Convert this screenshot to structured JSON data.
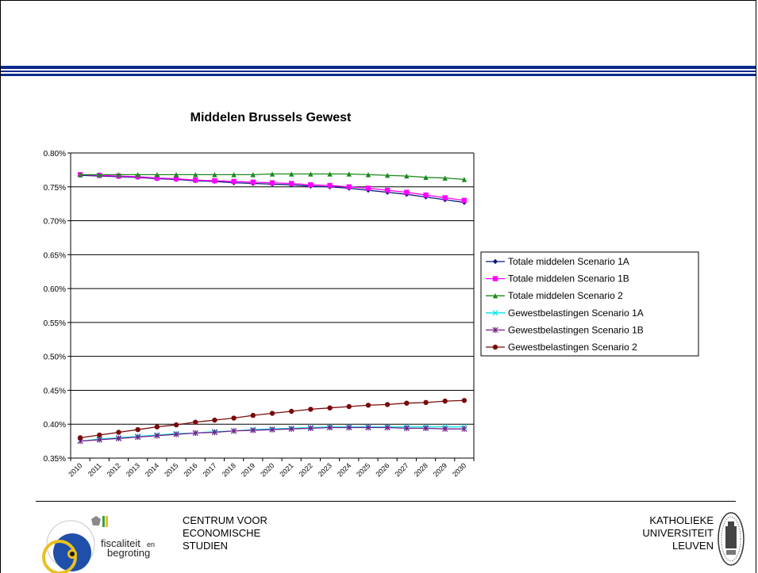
{
  "colors": {
    "band": "#0a2a8c",
    "series": [
      "#0a1a7a",
      "#ff00ff",
      "#1a8a1a",
      "#00e5e5",
      "#7a1f8a",
      "#7a0a0a"
    ]
  },
  "chart_data": {
    "type": "line",
    "title": "Middelen Brussels Gewest",
    "xlabel": "",
    "ylabel": "",
    "ylim": [
      0.35,
      0.8
    ],
    "y_ticks": [
      "0.35%",
      "0.40%",
      "0.45%",
      "0.50%",
      "0.55%",
      "0.60%",
      "0.65%",
      "0.70%",
      "0.75%",
      "0.80%"
    ],
    "grid": "horizontal",
    "legend_position": "right",
    "x": [
      "2010",
      "2011",
      "2012",
      "2013",
      "2014",
      "2015",
      "2016",
      "2017",
      "2018",
      "2019",
      "2020",
      "2021",
      "2022",
      "2023",
      "2024",
      "2025",
      "2026",
      "2027",
      "2028",
      "2029",
      "2030"
    ],
    "series": [
      {
        "name": "Totale middelen Scenario 1A",
        "marker": "diamond",
        "values": [
          0.767,
          0.766,
          0.765,
          0.764,
          0.762,
          0.761,
          0.759,
          0.758,
          0.756,
          0.755,
          0.754,
          0.753,
          0.751,
          0.75,
          0.748,
          0.745,
          0.742,
          0.739,
          0.735,
          0.731,
          0.727
        ]
      },
      {
        "name": "Totale middelen Scenario 1B",
        "marker": "square",
        "values": [
          0.768,
          0.767,
          0.766,
          0.765,
          0.763,
          0.762,
          0.76,
          0.759,
          0.758,
          0.757,
          0.756,
          0.755,
          0.753,
          0.752,
          0.75,
          0.748,
          0.745,
          0.742,
          0.738,
          0.734,
          0.73
        ]
      },
      {
        "name": "Totale middelen Scenario 2",
        "marker": "triangle",
        "values": [
          0.768,
          0.768,
          0.768,
          0.768,
          0.768,
          0.768,
          0.768,
          0.768,
          0.768,
          0.768,
          0.769,
          0.769,
          0.769,
          0.769,
          0.769,
          0.768,
          0.767,
          0.766,
          0.764,
          0.763,
          0.761
        ]
      },
      {
        "name": "Gewestbelastingen Scenario 1A",
        "marker": "x",
        "values": [
          0.375,
          0.378,
          0.38,
          0.382,
          0.384,
          0.386,
          0.387,
          0.389,
          0.39,
          0.392,
          0.393,
          0.394,
          0.395,
          0.396,
          0.396,
          0.396,
          0.396,
          0.396,
          0.396,
          0.396,
          0.396
        ]
      },
      {
        "name": "Gewestbelastingen Scenario 1B",
        "marker": "star",
        "values": [
          0.375,
          0.377,
          0.379,
          0.381,
          0.383,
          0.385,
          0.387,
          0.388,
          0.39,
          0.391,
          0.392,
          0.393,
          0.394,
          0.395,
          0.395,
          0.395,
          0.395,
          0.394,
          0.394,
          0.393,
          0.393
        ]
      },
      {
        "name": "Gewestbelastingen Scenario 2",
        "marker": "circle",
        "values": [
          0.38,
          0.384,
          0.388,
          0.392,
          0.396,
          0.399,
          0.403,
          0.406,
          0.409,
          0.413,
          0.416,
          0.419,
          0.422,
          0.424,
          0.426,
          0.428,
          0.429,
          0.431,
          0.432,
          0.434,
          0.435
        ]
      }
    ]
  },
  "footer": {
    "left_lines": [
      "CENTRUM VOOR",
      "ECONOMISCHE",
      "STUDIEN"
    ],
    "right_lines": [
      "KATHOLIEKE",
      "UNIVERSITEIT",
      "LEUVEN"
    ],
    "logo_left_text": [
      "fiscaliteit",
      "en",
      "begroting"
    ],
    "logo_left_icon": "fiscaliteit-begroting-logo-icon",
    "logo_right_icon": "ku-leuven-seal-icon"
  }
}
